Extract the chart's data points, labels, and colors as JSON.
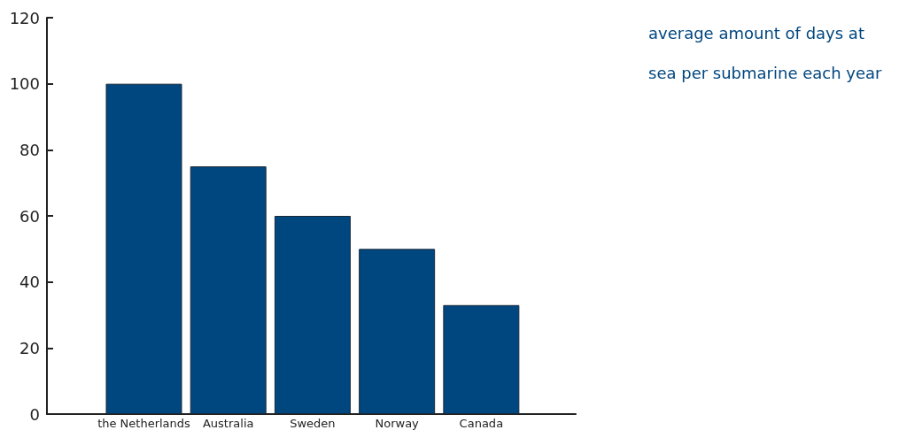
{
  "chart_data": {
    "type": "bar",
    "title": "average amount of days at sea per submarine each year",
    "categories": [
      "the Netherlands",
      "Australia",
      "Sweden",
      "Norway",
      "Canada"
    ],
    "values": [
      100,
      75,
      60,
      50,
      33
    ],
    "color": "#00467f",
    "ylim": [
      0,
      120
    ],
    "yticks": [
      0,
      20,
      40,
      60,
      80,
      100,
      120
    ],
    "grid": false
  }
}
